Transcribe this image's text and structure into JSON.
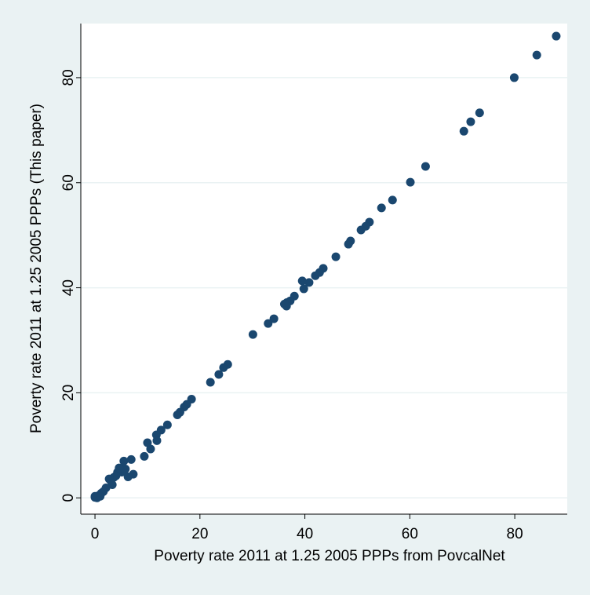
{
  "chart_data": {
    "type": "scatter",
    "x_label": "Poverty  rate 2011 at 1.25 2005 PPPs from PovcalNet",
    "y_label": "Poverty  rate 2011 at 1.25 2005 PPPs (This paper)",
    "x": [
      87.9,
      84.2,
      79.9,
      73.3,
      71.6,
      70.3,
      63,
      60.1,
      56.7,
      54.6,
      52.3,
      51.6,
      50.7,
      48.7,
      48.3,
      45.9,
      43.5,
      42.8,
      42.0,
      40.8,
      39.5,
      39.8,
      38.0,
      37.2,
      36.6,
      36.5,
      36.1,
      34.1,
      33.0,
      30.1,
      25.3,
      24.5,
      23.6,
      22,
      18.4,
      17.5,
      17.0,
      16.2,
      15.7,
      13.8,
      12.6,
      11.7,
      11.8,
      10.6,
      10,
      9.4,
      7.3,
      6.9,
      5.5,
      5.8,
      5.1,
      4.3,
      4.0,
      6.3,
      3.6,
      3,
      2.7,
      3.3,
      2.1,
      1.6,
      1.2,
      0.6,
      0,
      0.4,
      0,
      1,
      5.5,
      4.6
    ],
    "values": [
      87.9,
      84.3,
      80,
      73.3,
      71.6,
      69.8,
      63.1,
      60.1,
      56.7,
      55.2,
      52.5,
      51.7,
      51,
      48.9,
      48.3,
      45.9,
      43.7,
      42.9,
      42.3,
      41,
      41.3,
      39.8,
      38.4,
      37.5,
      37.2,
      36.5,
      36.9,
      34.1,
      33.2,
      31.1,
      25.4,
      24.8,
      23.5,
      22,
      18.8,
      17.8,
      17.3,
      16.3,
      15.8,
      13.9,
      12.9,
      12.0,
      10.9,
      9.3,
      10.5,
      7.9,
      4.5,
      7.3,
      7,
      5.5,
      4.9,
      4.9,
      4.2,
      4,
      3.9,
      3.3,
      3.6,
      2.5,
      1.9,
      1.2,
      0.9,
      0.4,
      0.1,
      0.0,
      0.3,
      0.3,
      5.5,
      5.7
    ],
    "color": "#1a476f",
    "xlim": [
      -2.7,
      90
    ],
    "ylim": [
      -3.1,
      90.3
    ],
    "xticks": [
      0,
      20,
      40,
      60,
      80
    ],
    "yticks": [
      0,
      20,
      40,
      60,
      80
    ],
    "grid": true
  }
}
